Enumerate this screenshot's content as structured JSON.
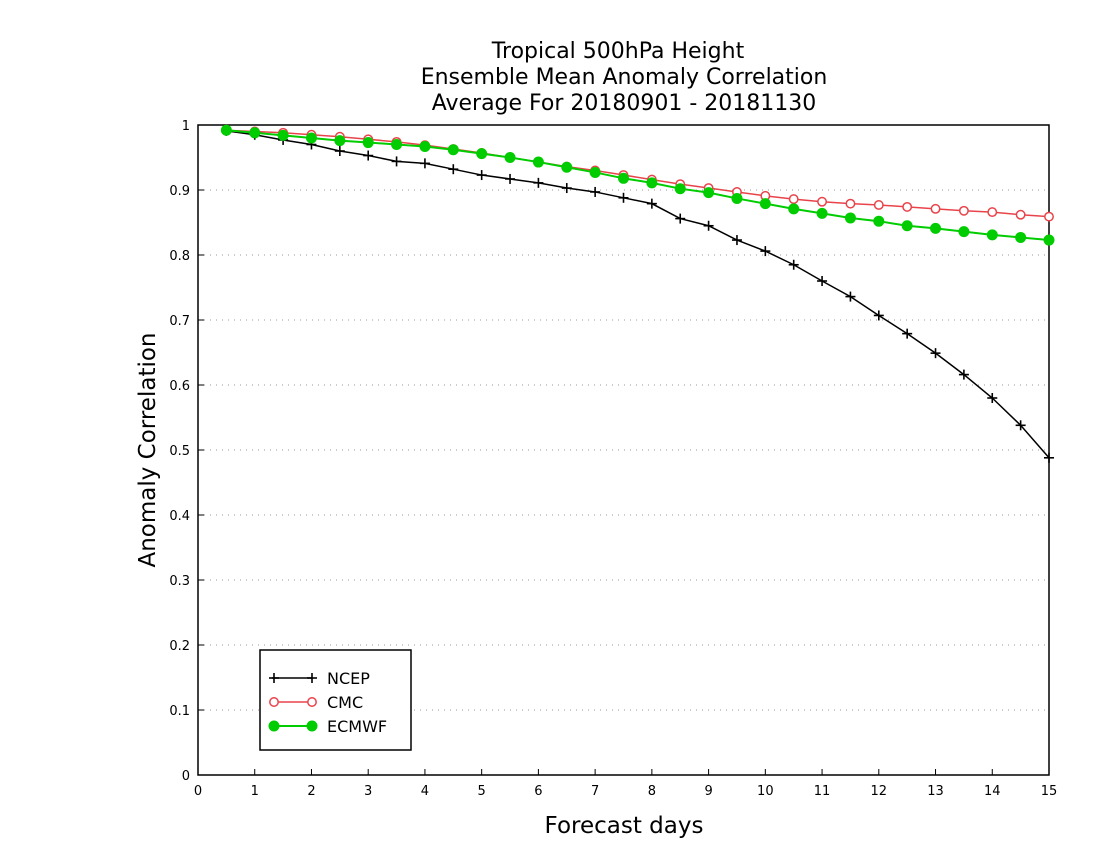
{
  "chart_data": {
    "type": "line",
    "title": [
      "Tropical 500hPa Height",
      "Ensemble Mean Anomaly Correlation",
      "Average For 20180901 - 20181130"
    ],
    "xlabel": "Forecast days",
    "ylabel": "Anomaly Correlation",
    "xlim": [
      0,
      15
    ],
    "ylim": [
      0,
      1
    ],
    "xticks": [
      0,
      1,
      2,
      3,
      4,
      5,
      6,
      7,
      8,
      9,
      10,
      11,
      12,
      13,
      14,
      15
    ],
    "yticks": [
      0,
      0.1,
      0.2,
      0.3,
      0.4,
      0.5,
      0.6,
      0.7,
      0.8,
      0.9,
      1
    ],
    "ytick_labels": [
      "0",
      "0.1",
      "0.2",
      "0.3",
      "0.4",
      "0.5",
      "0.6",
      "0.7",
      "0.8",
      "0.9",
      "1"
    ],
    "grid": "horizontal-dotted",
    "legend_position": "bottom-left",
    "x": [
      0.5,
      1,
      1.5,
      2,
      2.5,
      3,
      3.5,
      4,
      4.5,
      5,
      5.5,
      6,
      6.5,
      7,
      7.5,
      8,
      8.5,
      9,
      9.5,
      10,
      10.5,
      11,
      11.5,
      12,
      12.5,
      13,
      13.5,
      14,
      14.5,
      15
    ],
    "series": [
      {
        "name": "NCEP",
        "color": "#000000",
        "marker": "plus",
        "values": [
          0.991,
          0.985,
          0.977,
          0.97,
          0.96,
          0.953,
          0.944,
          0.941,
          0.932,
          0.923,
          0.917,
          0.911,
          0.903,
          0.897,
          0.888,
          0.879,
          0.856,
          0.845,
          0.823,
          0.806,
          0.785,
          0.76,
          0.736,
          0.707,
          0.679,
          0.649,
          0.616,
          0.58,
          0.538,
          0.488
        ]
      },
      {
        "name": "CMC",
        "color": "#e8434a",
        "marker": "open-circle",
        "values": [
          0.992,
          0.99,
          0.988,
          0.985,
          0.982,
          0.978,
          0.974,
          0.969,
          0.963,
          0.957,
          0.95,
          0.943,
          0.936,
          0.93,
          0.923,
          0.916,
          0.909,
          0.903,
          0.897,
          0.891,
          0.886,
          0.882,
          0.879,
          0.877,
          0.874,
          0.871,
          0.868,
          0.866,
          0.862,
          0.859
        ]
      },
      {
        "name": "ECMWF",
        "color": "#00cc00",
        "marker": "filled-circle",
        "values": [
          0.992,
          0.988,
          0.984,
          0.98,
          0.976,
          0.973,
          0.97,
          0.967,
          0.962,
          0.956,
          0.95,
          0.943,
          0.935,
          0.927,
          0.918,
          0.911,
          0.902,
          0.896,
          0.887,
          0.879,
          0.871,
          0.864,
          0.857,
          0.852,
          0.845,
          0.841,
          0.836,
          0.831,
          0.827,
          0.823
        ]
      }
    ]
  }
}
